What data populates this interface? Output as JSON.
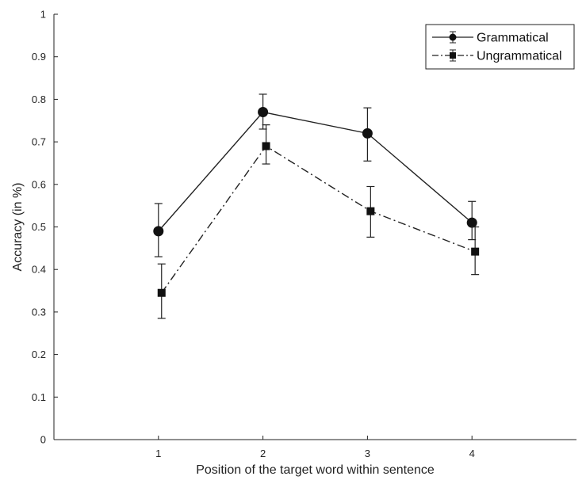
{
  "chart_data": {
    "type": "line",
    "title": "",
    "xlabel": "Position of the target word within sentence",
    "ylabel": "Accuracy (in %)",
    "x": [
      1,
      2,
      3,
      4
    ],
    "xticks": [
      "1",
      "2",
      "3",
      "4"
    ],
    "xlim": [
      0,
      5
    ],
    "ylim": [
      0,
      1
    ],
    "yticks": [
      "0",
      "0.1",
      "0.2",
      "0.3",
      "0.4",
      "0.5",
      "0.6",
      "0.7",
      "0.8",
      "0.9",
      "1"
    ],
    "grid": false,
    "legend_position": "top-right",
    "series": [
      {
        "name": "Grammatical",
        "x": [
          1,
          2,
          3,
          4
        ],
        "values": [
          0.49,
          0.77,
          0.72,
          0.51
        ],
        "err_low": [
          0.43,
          0.73,
          0.655,
          0.47
        ],
        "err_high": [
          0.555,
          0.812,
          0.78,
          0.56
        ],
        "marker": "circle",
        "line_style": "solid",
        "color": "#222222"
      },
      {
        "name": "Ungrammatical",
        "x": [
          1.03,
          2.03,
          3.03,
          4.03
        ],
        "values": [
          0.345,
          0.69,
          0.537,
          0.442
        ],
        "err_low": [
          0.285,
          0.648,
          0.476,
          0.388
        ],
        "err_high": [
          0.413,
          0.74,
          0.595,
          0.5
        ],
        "marker": "square",
        "line_style": "dash-dot",
        "color": "#222222"
      }
    ]
  }
}
